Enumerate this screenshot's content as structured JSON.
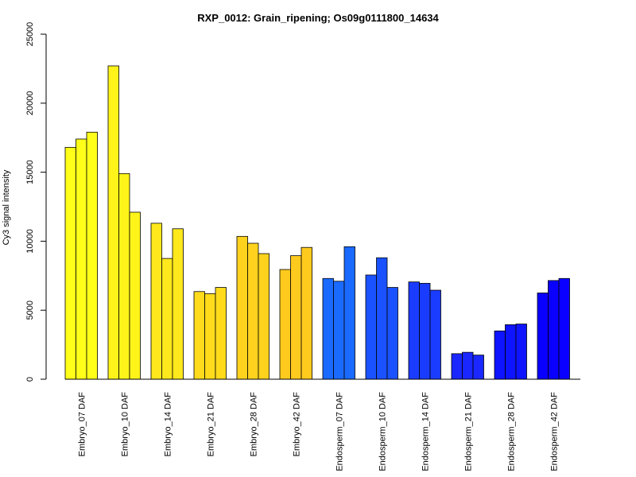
{
  "chart_data": {
    "type": "bar",
    "title": "RXP_0012: Grain_ripening; Os09g0111800_14634",
    "xlabel": "",
    "ylabel": "Cy3 signal intensity",
    "ylim": [
      0,
      25000
    ],
    "yticks": [
      0,
      5000,
      10000,
      15000,
      20000,
      25000
    ],
    "ytick_labels": [
      "0",
      "5000",
      "10000",
      "15000",
      "20000",
      "25000"
    ],
    "grid": false,
    "legend": "none",
    "bars_per_group": 3,
    "categories": [
      "Embryo_07 DAF",
      "Embryo_10 DAF",
      "Embryo_14 DAF",
      "Embryo_21 DAF",
      "Embryo_28 DAF",
      "Embryo_42 DAF",
      "Endosperm_07 DAF",
      "Endosperm_10 DAF",
      "Endosperm_14 DAF",
      "Endosperm_21 DAF",
      "Endosperm_28 DAF",
      "Endosperm_42 DAF"
    ],
    "group_colors": [
      "#FFFF1A",
      "#FFF41A",
      "#FFE81C",
      "#FFDB1C",
      "#FFD21E",
      "#FFCA1E",
      "#1A6AFF",
      "#1A52FF",
      "#1A3CFF",
      "#1A28FF",
      "#0E14FF",
      "#0A00FF"
    ],
    "values": [
      [
        16800,
        17400,
        17900
      ],
      [
        22700,
        14900,
        12100
      ],
      [
        11300,
        8750,
        10900
      ],
      [
        6350,
        6200,
        6650
      ],
      [
        10350,
        9850,
        9100
      ],
      [
        7950,
        8950,
        9550
      ],
      [
        7300,
        7100,
        9600
      ],
      [
        7550,
        8800,
        6650
      ],
      [
        7050,
        6950,
        6450
      ],
      [
        1850,
        1950,
        1750
      ],
      [
        3500,
        3950,
        4000
      ],
      [
        6250,
        7150,
        7300
      ]
    ]
  }
}
